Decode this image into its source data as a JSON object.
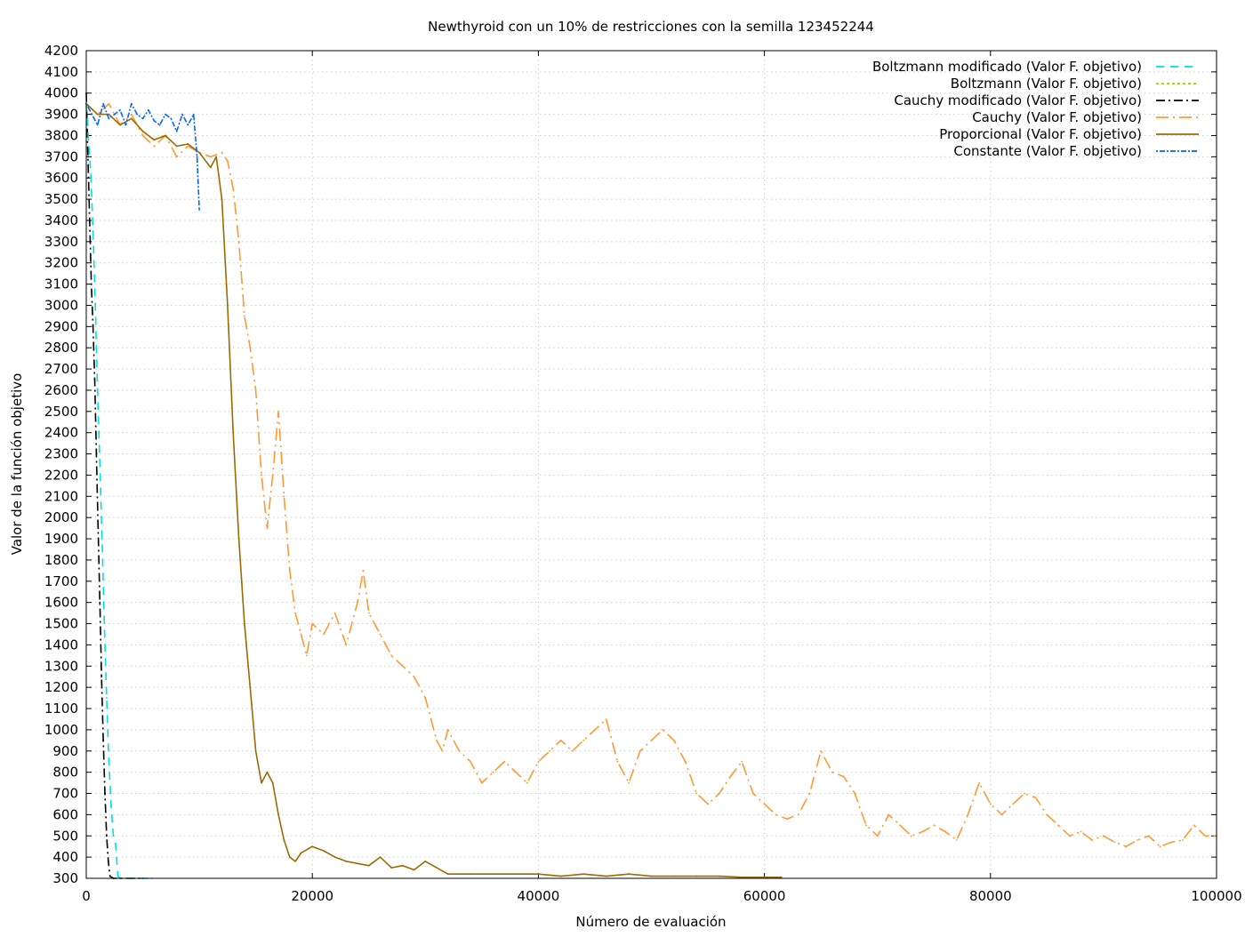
{
  "chart_data": {
    "type": "line",
    "title": "Newthyroid con un 10% de restricciones con la semilla 123452244",
    "xlabel": "Número de evaluación",
    "ylabel": "Valor de la función objetivo",
    "xlim": [
      0,
      100000
    ],
    "ylim": [
      300,
      4200
    ],
    "x_ticks": [
      0,
      20000,
      40000,
      60000,
      80000,
      100000
    ],
    "y_ticks": [
      300,
      400,
      500,
      600,
      700,
      800,
      900,
      1000,
      1100,
      1200,
      1300,
      1400,
      1500,
      1600,
      1700,
      1800,
      1900,
      2000,
      2100,
      2200,
      2300,
      2400,
      2500,
      2600,
      2700,
      2800,
      2900,
      3000,
      3100,
      3200,
      3300,
      3400,
      3500,
      3600,
      3700,
      3800,
      3900,
      4000,
      4100,
      4200
    ],
    "grid": true,
    "legend_position": "top-right",
    "series": [
      {
        "name": "Boltzmann modificado (Valor F. objetivo)",
        "color": "#00e0e0",
        "dash": "cyan-dash",
        "x": [
          0,
          200,
          400,
          600,
          800,
          1000,
          1200,
          1400,
          1600,
          1800,
          2000,
          2200,
          2400,
          2600,
          2800,
          3000,
          4000,
          5000,
          5800
        ],
        "y": [
          3950,
          3780,
          3620,
          3350,
          3000,
          2600,
          2250,
          1900,
          1500,
          1150,
          850,
          640,
          500,
          460,
          310,
          300,
          300,
          300,
          300
        ]
      },
      {
        "name": "Boltzmann (Valor F. objetivo)",
        "color": "#a6c800",
        "dash": "short-dot",
        "x": [],
        "y": []
      },
      {
        "name": "Cauchy modificado (Valor F. objetivo)",
        "color": "#000000",
        "dash": "dash-dot",
        "x": [
          0,
          150,
          300,
          450,
          600,
          750,
          900,
          1050,
          1200,
          1350,
          1500,
          1650,
          1800,
          1950,
          2100,
          2400,
          3000,
          4000,
          5000
        ],
        "y": [
          4000,
          3700,
          3400,
          3100,
          2900,
          2650,
          2300,
          1950,
          1600,
          1250,
          950,
          700,
          500,
          380,
          310,
          300,
          300,
          300,
          300
        ]
      },
      {
        "name": "Cauchy (Valor F. objetivo)",
        "color": "#ff9933",
        "dash": "long-dash-dot",
        "x": [
          0,
          1000,
          2000,
          3000,
          4000,
          5000,
          6000,
          7000,
          8000,
          9000,
          10000,
          11000,
          12000,
          12500,
          13000,
          13500,
          14000,
          14500,
          15000,
          15500,
          16000,
          16500,
          17000,
          17500,
          18000,
          18500,
          19000,
          19500,
          20000,
          21000,
          22000,
          23000,
          24000,
          24500,
          25000,
          26000,
          27000,
          28000,
          29000,
          30000,
          31000,
          31500,
          32000,
          33000,
          34000,
          35000,
          36000,
          37000,
          38000,
          39000,
          40000,
          41000,
          42000,
          43000,
          44000,
          45000,
          46000,
          47000,
          48000,
          49000,
          50000,
          51000,
          52000,
          53000,
          54000,
          55000,
          56000,
          57000,
          58000,
          59000,
          60000,
          61000,
          62000,
          63000,
          64000,
          65000,
          66000,
          67000,
          68000,
          69000,
          70000,
          71000,
          72000,
          73000,
          74000,
          75000,
          76000,
          77000,
          78000,
          79000,
          80000,
          81000,
          82000,
          83000,
          84000,
          85000,
          86000,
          87000,
          88000,
          89000,
          90000,
          91000,
          92000,
          93000,
          94000,
          95000,
          96000,
          97000,
          98000,
          99000,
          100000
        ],
        "y": [
          3950,
          3900,
          3950,
          3850,
          3900,
          3800,
          3750,
          3800,
          3700,
          3750,
          3720,
          3700,
          3720,
          3680,
          3550,
          3300,
          2950,
          2800,
          2600,
          2200,
          1950,
          2200,
          2500,
          2100,
          1750,
          1550,
          1450,
          1350,
          1500,
          1450,
          1550,
          1400,
          1600,
          1750,
          1550,
          1450,
          1350,
          1300,
          1250,
          1150,
          950,
          900,
          1000,
          900,
          850,
          750,
          800,
          850,
          800,
          750,
          850,
          900,
          950,
          900,
          950,
          1000,
          1050,
          850,
          750,
          900,
          950,
          1000,
          950,
          850,
          700,
          650,
          700,
          780,
          850,
          700,
          650,
          600,
          580,
          600,
          700,
          900,
          800,
          780,
          700,
          550,
          500,
          600,
          550,
          500,
          520,
          550,
          520,
          480,
          600,
          750,
          650,
          600,
          650,
          700,
          680,
          600,
          550,
          500,
          520,
          480,
          500,
          470,
          450,
          480,
          500,
          450,
          470,
          480,
          550,
          500,
          500
        ]
      },
      {
        "name": "Proporcional (Valor F. objetivo)",
        "color": "#9c6a00",
        "dash": "solid",
        "x": [
          0,
          1000,
          2000,
          3000,
          4000,
          5000,
          6000,
          7000,
          8000,
          9000,
          10000,
          11000,
          11500,
          12000,
          12500,
          13000,
          13500,
          14000,
          14500,
          15000,
          15500,
          16000,
          16500,
          17000,
          17500,
          18000,
          18500,
          19000,
          20000,
          21000,
          22000,
          23000,
          24000,
          25000,
          26000,
          27000,
          28000,
          29000,
          30000,
          32000,
          34000,
          36000,
          38000,
          40000,
          42000,
          44000,
          46000,
          48000,
          50000,
          52000,
          54000,
          56000,
          58000,
          60000,
          61500
        ],
        "y": [
          3950,
          3900,
          3900,
          3850,
          3880,
          3820,
          3780,
          3800,
          3750,
          3760,
          3720,
          3650,
          3700,
          3500,
          3000,
          2400,
          1900,
          1500,
          1200,
          900,
          750,
          800,
          750,
          600,
          480,
          400,
          380,
          420,
          450,
          430,
          400,
          380,
          370,
          360,
          400,
          350,
          360,
          340,
          380,
          320,
          320,
          320,
          320,
          320,
          310,
          320,
          310,
          320,
          310,
          310,
          310,
          310,
          305,
          305,
          305
        ]
      },
      {
        "name": "Constante (Valor F. objetivo)",
        "color": "#0066ff",
        "dash": "dot-dash-fine",
        "x": [
          0,
          500,
          1000,
          1500,
          2000,
          2500,
          3000,
          3500,
          4000,
          4500,
          5000,
          5500,
          6000,
          6500,
          7000,
          7500,
          8000,
          8500,
          9000,
          9500,
          9800,
          10000
        ],
        "y": [
          3950,
          3900,
          3850,
          3950,
          3880,
          3900,
          3920,
          3850,
          3950,
          3900,
          3880,
          3920,
          3870,
          3850,
          3900,
          3880,
          3820,
          3900,
          3850,
          3900,
          3700,
          3450
        ]
      }
    ]
  }
}
